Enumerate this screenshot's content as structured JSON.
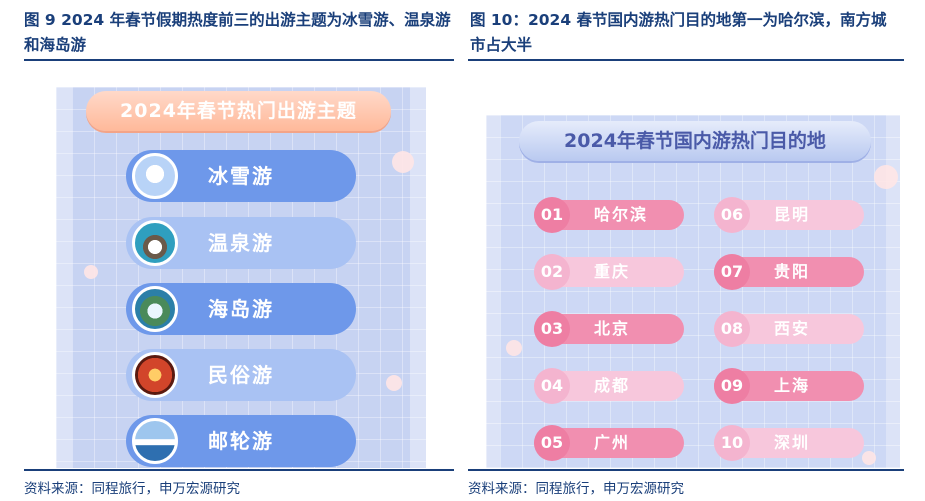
{
  "left_figure": {
    "title": "图 9  2024 年春节假期热度前三的出游主题为冰雪游、温泉游和海岛游",
    "banner": "2024年春节热门出游主题",
    "themes": [
      {
        "label": "冰雪游",
        "icon": "ferris-wheel-icon"
      },
      {
        "label": "温泉游",
        "icon": "hot-spring-icon"
      },
      {
        "label": "海岛游",
        "icon": "island-icon"
      },
      {
        "label": "民俗游",
        "icon": "folk-lantern-icon"
      },
      {
        "label": "邮轮游",
        "icon": "cruise-ship-icon"
      }
    ],
    "source": "资料来源：同程旅行，申万宏源研究"
  },
  "right_figure": {
    "title": "图 10：2024 春节国内游热门目的地第一为哈尔滨，南方城市占大半",
    "banner": "2024年春节国内游热门目的地",
    "destinations": [
      {
        "rank": "01",
        "city": "哈尔滨"
      },
      {
        "rank": "02",
        "city": "重庆"
      },
      {
        "rank": "03",
        "city": "北京"
      },
      {
        "rank": "04",
        "city": "成都"
      },
      {
        "rank": "05",
        "city": "广州"
      },
      {
        "rank": "06",
        "city": "昆明"
      },
      {
        "rank": "07",
        "city": "贵阳"
      },
      {
        "rank": "08",
        "city": "西安"
      },
      {
        "rank": "09",
        "city": "上海"
      },
      {
        "rank": "10",
        "city": "深圳"
      }
    ],
    "source": "资料来源：同程旅行，申万宏源研究"
  },
  "colors": {
    "title_blue": "#1a3f7a",
    "pill_blue": "#6e98ea",
    "pill_pink": "#f18fb0",
    "banner_orange": "#ffb99a"
  }
}
